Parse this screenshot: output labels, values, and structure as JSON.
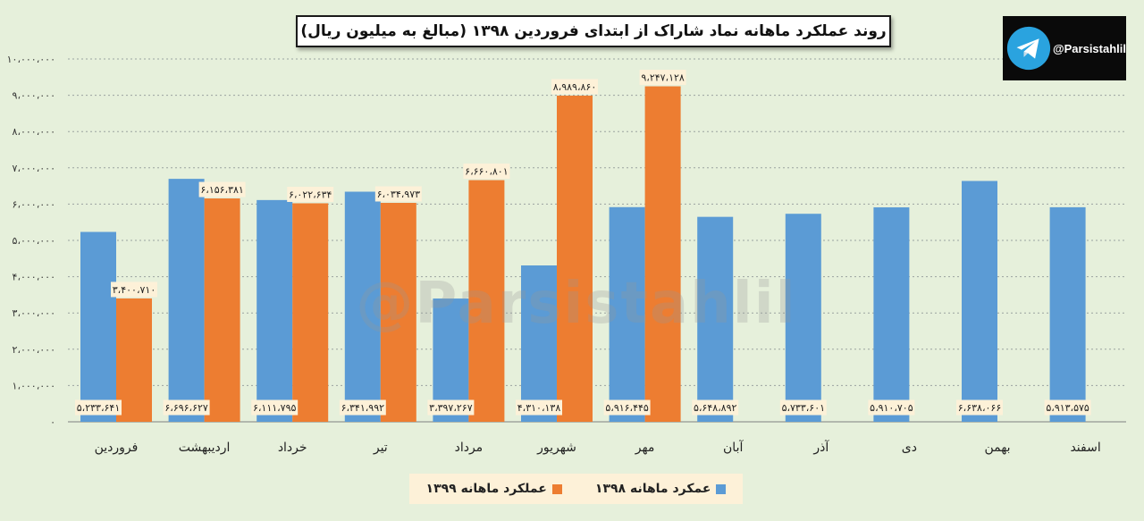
{
  "title": "روند عملکرد ماهانه نماد شاراک از ابتدای فروردین ۱۳۹۸ (مبالغ به میلیون ریال)",
  "watermark": "@Parsistahlil",
  "badge": {
    "handle": "@Parsistahlil",
    "icon": "telegram-icon"
  },
  "colors": {
    "series_1398": "#5b9bd5",
    "series_1399": "#ed7d31",
    "background": "#e6f0db",
    "label_bg": "#fdf1d8"
  },
  "chart_data": {
    "type": "bar",
    "categories": [
      "فروردین",
      "اردیبهشت",
      "خرداد",
      "تیر",
      "مرداد",
      "شهریور",
      "مهر",
      "آبان",
      "آذر",
      "دی",
      "بهمن",
      "اسفند"
    ],
    "series": [
      {
        "name": "عمکرد ماهانه ۱۳۹۸",
        "values": [
          5233641,
          6696627,
          6111795,
          6341992,
          3397267,
          4310138,
          5916445,
          5648892,
          5733601,
          5910705,
          6638066,
          5913575
        ],
        "labels": [
          "۵،۲۳۳،۶۴۱",
          "۶،۶۹۶،۶۲۷",
          "۶،۱۱۱،۷۹۵",
          "۶،۳۴۱،۹۹۲",
          "۳،۳۹۷،۲۶۷",
          "۴،۳۱۰،۱۳۸",
          "۵،۹۱۶،۴۴۵",
          "۵،۶۴۸،۸۹۲",
          "۵،۷۳۳،۶۰۱",
          "۵،۹۱۰،۷۰۵",
          "۶،۶۳۸،۰۶۶",
          "۵،۹۱۳،۵۷۵"
        ]
      },
      {
        "name": "عملکرد ماهانه ۱۳۹۹",
        "values": [
          3400710,
          6156381,
          6022634,
          6034973,
          6660801,
          8989860,
          9247128,
          null,
          null,
          null,
          null,
          null
        ],
        "labels": [
          "۳،۴۰۰،۷۱۰",
          "۶،۱۵۶،۳۸۱",
          "۶،۰۲۲،۶۳۴",
          "۶،۰۳۴،۹۷۳",
          "۶،۶۶۰،۸۰۱",
          "۸،۹۸۹،۸۶۰",
          "۹،۲۴۷،۱۲۸",
          null,
          null,
          null,
          null,
          null
        ]
      }
    ],
    "yticks": [
      0,
      1000000,
      2000000,
      3000000,
      4000000,
      5000000,
      6000000,
      7000000,
      8000000,
      9000000,
      10000000
    ],
    "ytick_labels": [
      "۰",
      "۱،۰۰۰،۰۰۰",
      "۲،۰۰۰،۰۰۰",
      "۳،۰۰۰،۰۰۰",
      "۴،۰۰۰،۰۰۰",
      "۵،۰۰۰،۰۰۰",
      "۶،۰۰۰،۰۰۰",
      "۷،۰۰۰،۰۰۰",
      "۸،۰۰۰،۰۰۰",
      "۹،۰۰۰،۰۰۰",
      "۱۰،۰۰۰،۰۰۰"
    ],
    "ylim": [
      0,
      10000000
    ],
    "grid": true,
    "legend": "bottom-center"
  }
}
